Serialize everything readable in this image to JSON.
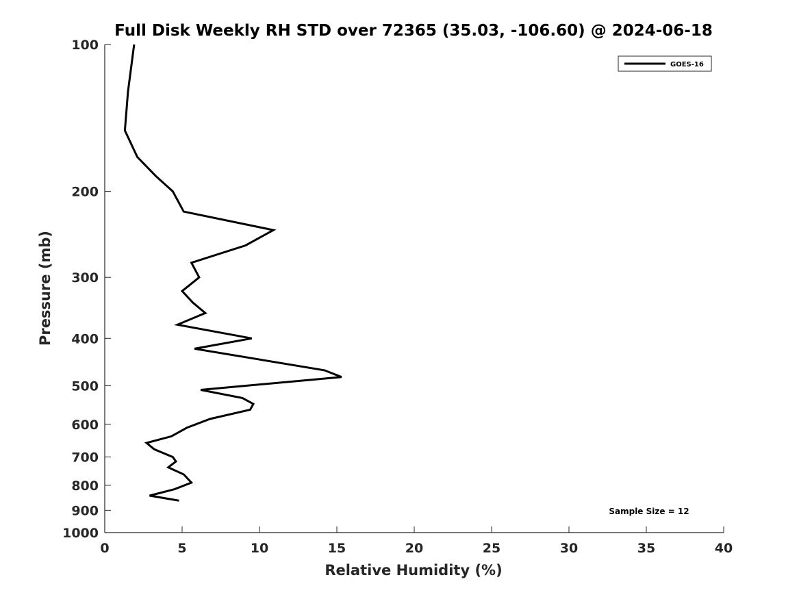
{
  "chart_data": {
    "type": "line",
    "title": "Full Disk Weekly RH STD over 72365 (35.03, -106.60) @ 2024-06-18",
    "xlabel": "Relative Humidity (%)",
    "ylabel": "Pressure (mb)",
    "xlim": [
      0,
      40
    ],
    "ylim": [
      100,
      1000
    ],
    "y_scale": "log",
    "y_reversed": true,
    "grid": false,
    "legend_position": "top-right",
    "line_color": "#000000",
    "x_ticks": [
      "0",
      "5",
      "10",
      "15",
      "20",
      "25",
      "30",
      "35",
      "40"
    ],
    "y_ticks": [
      "100",
      "200",
      "300",
      "400",
      "500",
      "600",
      "700",
      "800",
      "900",
      "1000"
    ],
    "series": [
      {
        "name": "GOES-16",
        "x": [
          1.9,
          1.5,
          1.3,
          2.1,
          3.3,
          4.4,
          5.1,
          10.9,
          9.1,
          5.6,
          6.1,
          5.0,
          5.7,
          6.5,
          4.7,
          9.5,
          5.8,
          14.2,
          15.3,
          6.2,
          8.9,
          9.6,
          9.4,
          6.8,
          5.3,
          4.3,
          2.7,
          3.2,
          4.4,
          4.6,
          4.1,
          5.1,
          5.6,
          4.5,
          2.9,
          4.8
        ],
        "y": [
          100,
          125,
          150,
          170,
          186,
          200,
          220,
          240,
          258,
          280,
          300,
          320,
          338,
          355,
          375,
          400,
          420,
          465,
          480,
          510,
          530,
          545,
          560,
          585,
          610,
          635,
          655,
          675,
          700,
          715,
          735,
          760,
          790,
          815,
          840,
          860
        ]
      }
    ],
    "annotations": [
      "Sample Size = 12"
    ]
  }
}
